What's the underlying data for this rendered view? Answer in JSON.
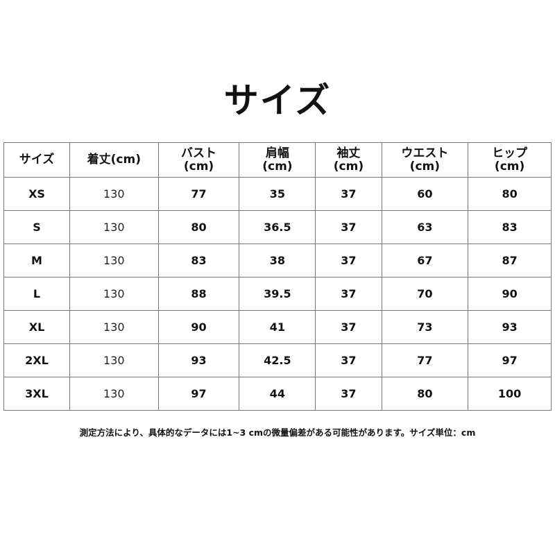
{
  "title": "サイズ",
  "table": {
    "headers": [
      "サイズ",
      "着丈(cm)",
      "バスト\n(cm)",
      "肩幅\n(cm)",
      "袖丈\n(cm)",
      "ウエスト\n(cm)",
      "ヒップ\n(cm)"
    ],
    "rows": [
      [
        "XS",
        "130",
        "77",
        "35",
        "37",
        "60",
        "80"
      ],
      [
        "S",
        "130",
        "80",
        "36.5",
        "37",
        "63",
        "83"
      ],
      [
        "M",
        "130",
        "83",
        "38",
        "37",
        "67",
        "87"
      ],
      [
        "L",
        "130",
        "88",
        "39.5",
        "37",
        "70",
        "90"
      ],
      [
        "XL",
        "130",
        "90",
        "41",
        "37",
        "73",
        "93"
      ],
      [
        "2XL",
        "130",
        "93",
        "42.5",
        "37",
        "77",
        "97"
      ],
      [
        "3XL",
        "130",
        "97",
        "44",
        "37",
        "80",
        "100"
      ]
    ]
  },
  "note": "測定方法により、具体的なデータには1~3 cmの微量偏差がある可能性があります。サイズ単位：cm"
}
